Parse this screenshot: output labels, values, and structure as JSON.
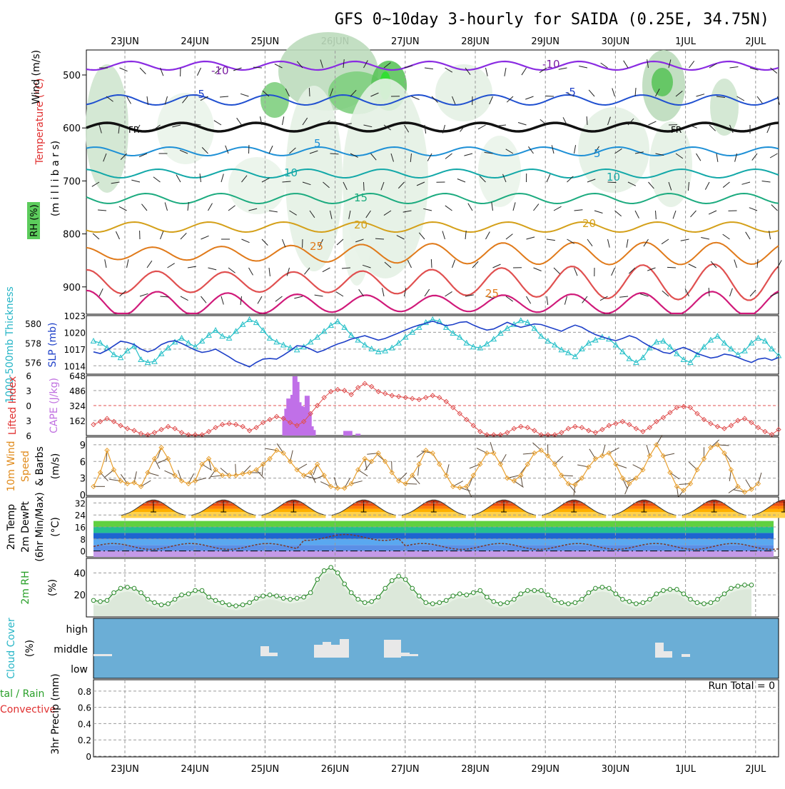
{
  "title": "GFS 0~10day 3-hourly for SAIDA (0.25E, 34.75N)",
  "days": [
    "23JUN",
    "24JUN",
    "25JUN",
    "26JUN",
    "27JUN",
    "28JUN",
    "29JUN",
    "30JUN",
    "1JUL",
    "2JUL"
  ],
  "panel_labels": {
    "upper_wind": "Wind (m/s)",
    "upper_temp": "Temperature (°C)",
    "upper_millibars": "(m i l l i b a r s)",
    "upper_rh": "RH (%)",
    "thickness": "1000-500mb Thickness",
    "slp": "SLP (mb)",
    "lifted": "Lifted Index",
    "cape": "CAPE (J/kg)",
    "wind10_a": "10m Wind",
    "wind10_b": "Speed",
    "wind10_c": "& Barbs",
    "wind10_unit": "(m/s)",
    "temp2m_a": "2m Temp",
    "temp2m_b": "2m DewPt",
    "temp2m_c": "(6hr Min/Max)",
    "temp2m_unit": "(°C)",
    "rh2m": "2m RH",
    "rh2m_unit": "(%)",
    "cloud_a": "Cloud Cover",
    "cloud_unit": "(%)",
    "precip_a": "tal / Rain",
    "precip_b": "Convective",
    "precip_c": "3hr Precip (mm)",
    "run_total": "Run Total = 0"
  },
  "contour_labels": {
    "m10a": "-10",
    "m10b": "-10",
    "m5a": "-5",
    "m5b": "-5",
    "fr1": "FR",
    "fr2": "FR",
    "p5a": "5",
    "p5b": "5",
    "p10a": "10",
    "p10b": "10",
    "p15": "15",
    "p20a": "20",
    "p20b": "20",
    "p25a": "25",
    "p25b": "25"
  },
  "chart_data": [
    {
      "type": "area",
      "name_panel": "upper-air",
      "yticks": [
        500,
        600,
        700,
        800,
        900
      ],
      "ylabel": "(m i l l i b a r s)",
      "contour_levels_C": [
        -10,
        -5,
        0,
        5,
        10,
        15,
        20,
        25
      ]
    },
    {
      "type": "line",
      "name_panel": "thickness-slp",
      "thickness_ticks": [
        576,
        578,
        580
      ],
      "slp_ticks": [
        1014,
        1017,
        1020,
        1023
      ],
      "thickness_dm": [
        578.2,
        578.0,
        577.5,
        576.8,
        576.5,
        577.2,
        577.7,
        576.3,
        576.0,
        576.1,
        576.9,
        577.5,
        578.1,
        578.5,
        578.0,
        577.6,
        578.2,
        578.8,
        579.3,
        578.7,
        578.5,
        579.2,
        579.9,
        580.4,
        580.1,
        579.3,
        578.5,
        578.1,
        577.8,
        577.5,
        577.3,
        577.6,
        578.1,
        578.6,
        579.2,
        579.8,
        580.2,
        579.6,
        578.8,
        578.3,
        577.8,
        577.4,
        577.1,
        577.2,
        577.5,
        578.0,
        578.6,
        579.1,
        579.6,
        580.1,
        580.4,
        580.2,
        579.6,
        579.0,
        578.6,
        578.0,
        577.6,
        577.5,
        577.9,
        578.4,
        579.0,
        579.5,
        579.9,
        580.3,
        580.1,
        579.5,
        578.7,
        578.2,
        577.8,
        577.3,
        577.0,
        576.6,
        577.4,
        578.0,
        578.3,
        578.6,
        578.4,
        577.8,
        577.1,
        576.4,
        576.0,
        576.5,
        577.5,
        578.1,
        578.2,
        577.6,
        576.9,
        576.3,
        576.0,
        576.8,
        577.6,
        578.3,
        578.7,
        578.0,
        577.4,
        576.8,
        577.2,
        578.0,
        578.5,
        578.2,
        577.4,
        576.7
      ],
      "slp_mb": [
        1016.5,
        1016.2,
        1016.8,
        1017.6,
        1018.4,
        1018.2,
        1017.8,
        1017.0,
        1016.5,
        1016.9,
        1017.8,
        1018.3,
        1018.5,
        1018.0,
        1017.4,
        1016.8,
        1016.4,
        1016.6,
        1017.0,
        1016.3,
        1015.6,
        1014.8,
        1014.3,
        1013.8,
        1014.6,
        1015.2,
        1015.3,
        1015.2,
        1015.9,
        1016.7,
        1017.6,
        1017.5,
        1017.0,
        1016.4,
        1016.8,
        1017.4,
        1017.9,
        1018.3,
        1018.8,
        1019.1,
        1019.4,
        1019.0,
        1018.6,
        1018.9,
        1019.4,
        1019.9,
        1020.4,
        1020.9,
        1021.3,
        1021.6,
        1022.0,
        1021.6,
        1021.2,
        1021.4,
        1021.8,
        1021.9,
        1021.3,
        1020.8,
        1020.4,
        1020.6,
        1021.2,
        1021.8,
        1021.3,
        1020.9,
        1021.2,
        1021.5,
        1021.4,
        1021.0,
        1020.6,
        1020.2,
        1020.8,
        1021.3,
        1020.9,
        1020.2,
        1019.6,
        1019.2,
        1018.8,
        1018.5,
        1018.9,
        1019.4,
        1019.0,
        1018.2,
        1017.5,
        1017.0,
        1016.4,
        1016.2,
        1016.9,
        1017.3,
        1016.8,
        1016.2,
        1015.8,
        1015.4,
        1015.6,
        1016.1,
        1015.9,
        1015.5,
        1015.0,
        1014.6,
        1015.2,
        1015.4,
        1015.0,
        1015.5
      ]
    },
    {
      "type": "bar",
      "name_panel": "cape-lifted",
      "cape_ticks": [
        162,
        324,
        486,
        648
      ],
      "lifted_ticks": [
        -6,
        -3,
        0,
        3,
        6
      ],
      "cape_bars": [
        {
          "x": 28.2,
          "v": 210
        },
        {
          "x": 28.5,
          "v": 290
        },
        {
          "x": 28.8,
          "v": 400
        },
        {
          "x": 29.1,
          "v": 160
        },
        {
          "x": 29.4,
          "v": 440
        },
        {
          "x": 29.7,
          "v": 640
        },
        {
          "x": 30.0,
          "v": 580
        },
        {
          "x": 30.3,
          "v": 360
        },
        {
          "x": 30.6,
          "v": 320
        },
        {
          "x": 30.9,
          "v": 180
        },
        {
          "x": 31.2,
          "v": 310
        },
        {
          "x": 31.5,
          "v": 430
        },
        {
          "x": 31.8,
          "v": 250
        },
        {
          "x": 32.1,
          "v": 100
        },
        {
          "x": 32.4,
          "v": 60
        },
        {
          "x": 37.2,
          "v": 50
        },
        {
          "x": 37.5,
          "v": 50
        },
        {
          "x": 37.8,
          "v": 50
        },
        {
          "x": 39.0,
          "v": 20
        }
      ],
      "lifted_index": [
        3.8,
        3.2,
        2.6,
        3.2,
        4.0,
        4.6,
        5.0,
        5.6,
        6.0,
        5.4,
        4.8,
        4.2,
        4.6,
        5.4,
        6.2,
        6.8,
        6.4,
        5.2,
        4.4,
        3.8,
        3.6,
        3.8,
        4.2,
        5.0,
        4.4,
        3.4,
        2.8,
        2.2,
        2.6,
        3.4,
        4.0,
        3.2,
        1.6,
        0.0,
        -1.6,
        -2.8,
        -3.2,
        -3.0,
        -2.2,
        -3.6,
        -4.4,
        -3.8,
        -2.8,
        -2.4,
        -2.0,
        -1.8,
        -1.6,
        -1.4,
        -1.2,
        -1.6,
        -2.0,
        -1.6,
        -0.8,
        0.4,
        1.6,
        2.8,
        4.0,
        5.2,
        6.2,
        6.8,
        6.4,
        5.4,
        4.6,
        4.2,
        4.4,
        5.0,
        6.0,
        6.6,
        6.2,
        5.4,
        4.6,
        4.2,
        4.4,
        5.0,
        5.4,
        4.8,
        4.0,
        3.6,
        3.2,
        3.8,
        4.6,
        5.2,
        4.4,
        3.2,
        2.4,
        1.4,
        0.4,
        0.2,
        0.4,
        1.6,
        2.8,
        3.6,
        4.2,
        4.6,
        4.0,
        3.0,
        2.6,
        3.4,
        4.4,
        5.2,
        5.8,
        4.8
      ]
    },
    {
      "type": "line",
      "name_panel": "wind10m",
      "yticks": [
        0,
        3,
        6,
        9
      ],
      "speed": [
        1.5,
        4.0,
        8.0,
        4.5,
        2.5,
        2.0,
        2.2,
        1.5,
        4.0,
        6.5,
        8.5,
        6.5,
        3.5,
        2.5,
        2.0,
        2.5,
        5.5,
        6.5,
        4.5,
        3.5,
        3.5,
        3.5,
        3.8,
        4.0,
        4.5,
        5.5,
        6.5,
        8.0,
        7.5,
        6.0,
        4.5,
        3.5,
        4.0,
        5.5,
        3.5,
        1.5,
        1.2,
        1.2,
        2.0,
        4.5,
        6.5,
        6.0,
        7.5,
        6.0,
        4.0,
        2.5,
        2.0,
        3.5,
        5.5,
        8.0,
        7.5,
        5.5,
        3.5,
        1.5,
        1.3,
        1.5,
        3.5,
        5.5,
        7.5,
        7.5,
        5.5,
        3.0,
        2.5,
        3.5,
        5.5,
        7.5,
        8.0,
        7.0,
        5.5,
        3.5,
        2.0,
        1.8,
        3.0,
        5.0,
        6.5,
        7.0,
        7.5,
        5.5,
        3.0,
        2.0,
        3.0,
        4.5,
        7.0,
        9.0,
        7.0,
        4.0,
        1.5,
        0.8,
        2.0,
        4.5,
        6.5,
        8.5,
        9.0,
        7.5,
        4.5,
        1.5,
        0.5,
        1.0,
        2.0
      ]
    },
    {
      "type": "area",
      "name_panel": "temp2m",
      "yticks": [
        0,
        8,
        16,
        24,
        32
      ],
      "ylim": [
        -4,
        36
      ]
    },
    {
      "type": "area",
      "name_panel": "rh2m",
      "yticks": [
        20,
        40
      ],
      "rh": [
        15,
        14,
        15,
        22,
        26,
        27,
        26,
        22,
        16,
        13,
        11,
        12,
        16,
        20,
        21,
        24,
        24,
        18,
        15,
        13,
        11,
        10,
        11,
        13,
        17,
        19,
        20,
        19,
        17,
        16,
        17,
        18,
        22,
        34,
        42,
        45,
        40,
        30,
        22,
        16,
        13,
        14,
        18,
        26,
        33,
        37,
        34,
        26,
        19,
        13,
        12,
        13,
        15,
        19,
        21,
        20,
        22,
        24,
        18,
        14,
        12,
        13,
        16,
        21,
        24,
        24,
        24,
        20,
        15,
        13,
        12,
        13,
        16,
        22,
        26,
        27,
        26,
        21,
        16,
        14,
        12,
        13,
        16,
        21,
        24,
        25,
        25,
        21,
        16,
        13,
        12,
        13,
        16,
        21,
        26,
        28,
        29,
        29
      ]
    },
    {
      "type": "bar",
      "name_panel": "cloud",
      "yticks": [
        "low",
        "middle",
        "high"
      ]
    },
    {
      "type": "bar",
      "name_panel": "precip",
      "yticks": [
        0,
        0.2,
        0.4,
        0.6,
        0.8
      ],
      "values": []
    }
  ]
}
